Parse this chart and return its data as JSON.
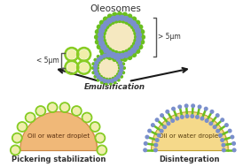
{
  "title": "Oleosomes",
  "label_left": "< 5μm",
  "label_right": "> 5μm",
  "label_center": "Emulsification",
  "label_pickering": "Pickering stabilization",
  "label_disintegration": "Disintegration",
  "label_droplet": "Oil or water droplet",
  "bg_color": "#ffffff",
  "droplet_fill": "#f5d98a",
  "droplet_fill_pickering": "#f0b878",
  "oleosome_fill": "#f5e8c0",
  "oleosome_outer_green": "#6abf20",
  "oleosome_outer_blue": "#7a8fcc",
  "small_fill": "#f0eeaa",
  "small_ring": "#88cc22",
  "arrow_color": "#1a1a1a",
  "text_color": "#303030",
  "bracket_color": "#555555"
}
